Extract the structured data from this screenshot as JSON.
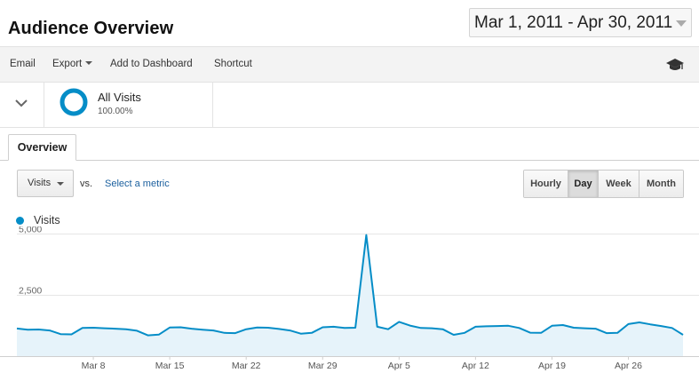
{
  "header": {
    "title": "Audience Overview",
    "date_range": "Mar 1, 2011 - Apr 30, 2011"
  },
  "toolbar": {
    "email": "Email",
    "export": "Export",
    "add_to_dashboard": "Add to Dashboard",
    "shortcut": "Shortcut"
  },
  "segment": {
    "name": "All Visits",
    "percent": "100.00%",
    "color": "#058dc7"
  },
  "tabs": {
    "overview": "Overview"
  },
  "controls": {
    "metric": "Visits",
    "vs": "vs.",
    "select_metric": "Select a metric",
    "granularity": [
      {
        "label": "Hourly",
        "active": false
      },
      {
        "label": "Day",
        "active": true
      },
      {
        "label": "Week",
        "active": false
      },
      {
        "label": "Month",
        "active": false
      }
    ]
  },
  "chart_data": {
    "type": "area",
    "series": [
      {
        "name": "Visits",
        "color": "#058dc7",
        "values": [
          1130,
          1080,
          1090,
          1050,
          900,
          890,
          1150,
          1160,
          1140,
          1120,
          1100,
          1040,
          850,
          880,
          1170,
          1180,
          1120,
          1080,
          1050,
          950,
          940,
          1100,
          1170,
          1160,
          1110,
          1050,
          920,
          950,
          1180,
          1200,
          1150,
          1160,
          4950,
          1200,
          1100,
          1400,
          1250,
          1150,
          1140,
          1100,
          870,
          950,
          1200,
          1220,
          1230,
          1240,
          1150,
          960,
          950,
          1240,
          1270,
          1160,
          1140,
          1120,
          940,
          950,
          1310,
          1380,
          1300,
          1230,
          1150,
          870
        ]
      }
    ],
    "x_tick_labels": [
      "Mar 8",
      "Mar 15",
      "Mar 22",
      "Mar 29",
      "Apr 5",
      "Apr 12",
      "Apr 19",
      "Apr 26"
    ],
    "y_tick_labels": [
      "5,000",
      "2,500"
    ],
    "ylim": [
      0,
      5300
    ],
    "grid": true,
    "legend": "top-left"
  }
}
